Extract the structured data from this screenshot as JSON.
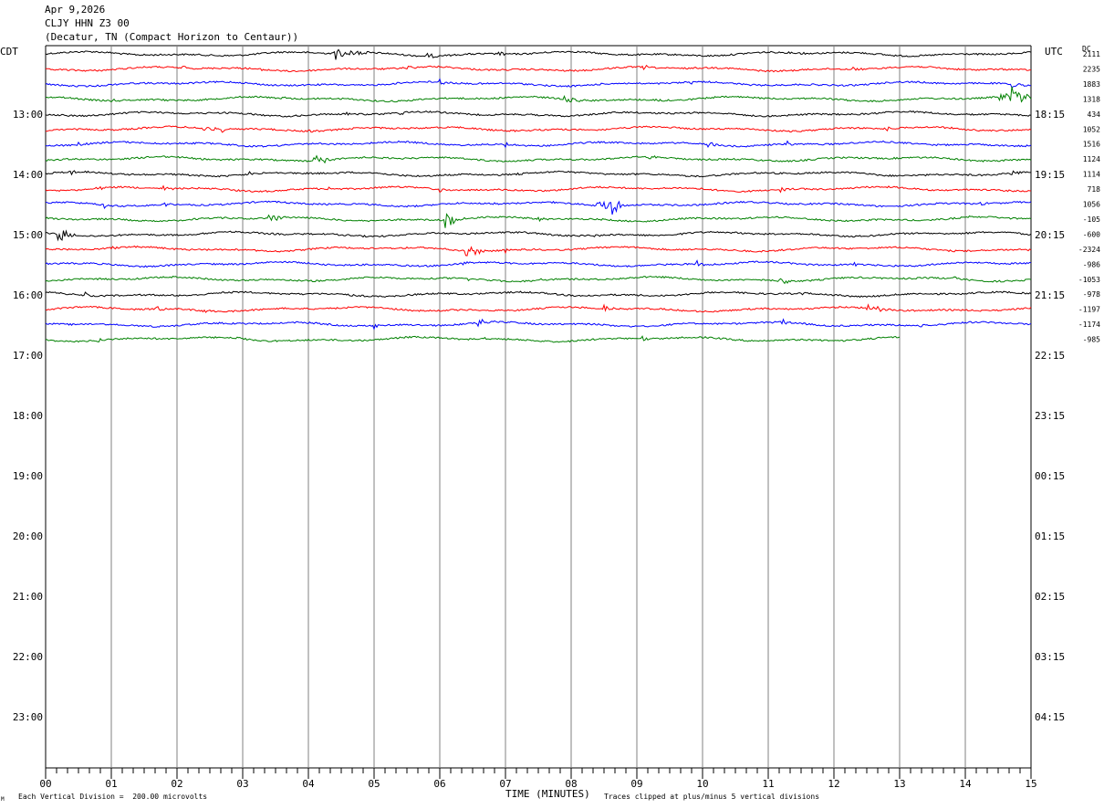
{
  "header": {
    "date": "Apr 9,2026",
    "channel": "CLJY HHN Z3 00",
    "location": "(Decatur, TN (Compact Horizon to Centaur))"
  },
  "left_zone": "CDT",
  "right_zone": "UTC",
  "dc_label": "DC",
  "footer": {
    "x_title": "TIME (MINUTES)",
    "division_note": "Each Vertical Division =  200.00 microvolts",
    "clip_note": "Traces clipped at plus/minus 5 vertical divisions",
    "corner_mark": "M"
  },
  "chart_data": {
    "type": "line",
    "title": "",
    "xlabel": "TIME (MINUTES)",
    "xlim": [
      0,
      15
    ],
    "x_ticks": [
      "00",
      "01",
      "02",
      "03",
      "04",
      "05",
      "06",
      "07",
      "08",
      "09",
      "10",
      "11",
      "12",
      "13",
      "14",
      "15"
    ],
    "left_hour_labels": [
      "13:00",
      "14:00",
      "15:00",
      "16:00",
      "17:00",
      "18:00",
      "19:00",
      "20:00",
      "21:00",
      "22:00",
      "23:00"
    ],
    "right_hour_labels": [
      "18:15",
      "19:15",
      "20:15",
      "21:15",
      "22:15",
      "23:15",
      "00:15",
      "01:15",
      "02:15",
      "03:15",
      "04:15"
    ],
    "trace_colors": [
      "#000000",
      "#ff0000",
      "#0000ff",
      "#008000"
    ],
    "rows": [
      {
        "dc": "2111",
        "events": [
          [
            4.4,
            7,
            0.5
          ],
          [
            5.8,
            3,
            0.2
          ],
          [
            6.9,
            3,
            0.15
          ],
          [
            11.5,
            2,
            0.1
          ]
        ]
      },
      {
        "dc": "2235",
        "events": [
          [
            2.1,
            3,
            0.1
          ],
          [
            3.3,
            2,
            0.1
          ],
          [
            5.5,
            3,
            0.1
          ],
          [
            9.1,
            3,
            0.1
          ],
          [
            12.3,
            3,
            0.1
          ]
        ]
      },
      {
        "dc": "1883",
        "events": [
          [
            6.0,
            4,
            0.12
          ],
          [
            9.8,
            3,
            0.1
          ],
          [
            14.7,
            5,
            0.15
          ]
        ]
      },
      {
        "dc": "1318",
        "events": [
          [
            1.0,
            2,
            0.1
          ],
          [
            1.8,
            3,
            0.1
          ],
          [
            3.6,
            2,
            0.1
          ],
          [
            7.9,
            4,
            0.3
          ],
          [
            9.3,
            3,
            0.2
          ],
          [
            14.5,
            5,
            0.5
          ],
          [
            14.7,
            14,
            0.25
          ]
        ]
      },
      {
        "dc": "434",
        "events": [
          [
            4.6,
            2,
            0.1
          ],
          [
            5.4,
            4,
            0.1
          ]
        ]
      },
      {
        "dc": "1052",
        "events": [
          [
            2.4,
            4,
            0.2
          ],
          [
            2.7,
            3,
            0.1
          ],
          [
            4.0,
            3,
            0.1
          ],
          [
            12.8,
            3,
            0.1
          ]
        ]
      },
      {
        "dc": "1516",
        "events": [
          [
            0.5,
            2,
            0.1
          ],
          [
            7.0,
            3,
            0.15
          ],
          [
            10.1,
            3,
            0.15
          ],
          [
            11.3,
            4,
            0.2
          ]
        ]
      },
      {
        "dc": "1124",
        "events": [
          [
            4.1,
            8,
            0.25
          ],
          [
            9.2,
            2,
            0.1
          ]
        ]
      },
      {
        "dc": "1114",
        "events": [
          [
            0.4,
            3,
            0.1
          ],
          [
            2.1,
            2,
            0.1
          ],
          [
            3.1,
            2,
            0.1
          ],
          [
            7.2,
            2,
            0.1
          ],
          [
            14.7,
            3,
            0.2
          ]
        ]
      },
      {
        "dc": "718",
        "events": [
          [
            0.8,
            3,
            0.1
          ],
          [
            1.8,
            3,
            0.1
          ],
          [
            4.3,
            2,
            0.1
          ],
          [
            6.0,
            3,
            0.1
          ],
          [
            11.2,
            3,
            0.1
          ]
        ]
      },
      {
        "dc": "1056",
        "events": [
          [
            0.9,
            3,
            0.1
          ],
          [
            1.8,
            3,
            0.1
          ],
          [
            6.8,
            3,
            0.15
          ],
          [
            8.4,
            6,
            0.3
          ],
          [
            8.6,
            14,
            0.2
          ],
          [
            13.3,
            2,
            0.1
          ],
          [
            14.2,
            3,
            0.1
          ]
        ]
      },
      {
        "dc": "-105",
        "events": [
          [
            3.4,
            7,
            0.2
          ],
          [
            6.1,
            8,
            0.25
          ],
          [
            7.5,
            3,
            0.1
          ],
          [
            14.0,
            2,
            0.1
          ]
        ]
      },
      {
        "dc": "-600",
        "events": [
          [
            0.2,
            10,
            0.2
          ],
          [
            7.2,
            3,
            0.1
          ],
          [
            8.3,
            4,
            0.15
          ]
        ]
      },
      {
        "dc": "-2324",
        "events": [
          [
            1.0,
            2,
            0.1
          ],
          [
            6.4,
            7,
            0.3
          ],
          [
            7.0,
            3,
            0.1
          ]
        ]
      },
      {
        "dc": "-986",
        "events": [
          [
            6.3,
            4,
            0.2
          ],
          [
            9.9,
            4,
            0.2
          ],
          [
            12.3,
            3,
            0.1
          ]
        ]
      },
      {
        "dc": "-1053",
        "events": [
          [
            6.4,
            3,
            0.1
          ],
          [
            7.5,
            3,
            0.1
          ],
          [
            11.2,
            4,
            0.2
          ],
          [
            13.8,
            3,
            0.2
          ]
        ]
      },
      {
        "dc": "-978",
        "events": [
          [
            0.6,
            3,
            0.1
          ],
          [
            4.6,
            2,
            0.1
          ],
          [
            11.5,
            2,
            0.1
          ]
        ]
      },
      {
        "dc": "-1197",
        "events": [
          [
            1.7,
            3,
            0.1
          ],
          [
            2.4,
            2,
            0.1
          ],
          [
            8.5,
            6,
            0.15
          ],
          [
            12.5,
            5,
            0.35
          ]
        ]
      },
      {
        "dc": "-1174",
        "events": [
          [
            5.0,
            4,
            0.1
          ],
          [
            6.6,
            6,
            0.2
          ],
          [
            11.2,
            4,
            0.15
          ],
          [
            13.3,
            4,
            0.15
          ]
        ]
      },
      {
        "dc": "-985",
        "events": [
          [
            0.8,
            3,
            0.1
          ],
          [
            2.9,
            3,
            0.1
          ],
          [
            6.7,
            3,
            0.1
          ],
          [
            9.1,
            3,
            0.1
          ]
        ]
      }
    ],
    "last_row_end_minute": 13.0,
    "grid": true
  }
}
